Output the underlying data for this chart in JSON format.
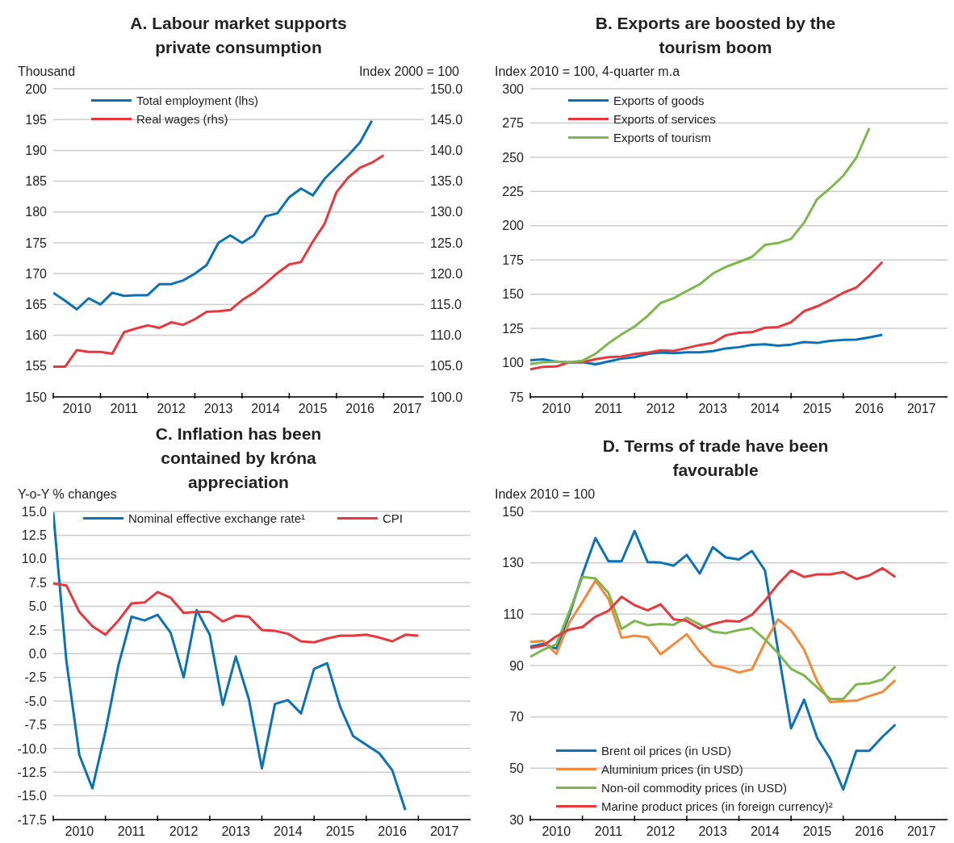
{
  "chart_data": [
    {
      "type": "line",
      "title": "A. Labour market supports private consumption",
      "ylabel": "Thousand",
      "y2label": "Index 2000 = 100",
      "grid": "y",
      "legend": "top left",
      "x": [
        2010,
        2010.25,
        2010.5,
        2010.75,
        2011,
        2011.25,
        2011.5,
        2011.75,
        2012,
        2012.25,
        2012.5,
        2012.75,
        2013,
        2013.25,
        2013.5,
        2013.75,
        2014,
        2014.25,
        2014.5,
        2014.75,
        2015,
        2015.25,
        2015.5,
        2015.75,
        2016,
        2016.25,
        2016.5,
        2016.75,
        2017
      ],
      "xlim": [
        2010,
        2017.85
      ],
      "xticks": [
        {
          "value": 2010,
          "label": null
        },
        {
          "value": 2010.5,
          "label": "2010"
        },
        {
          "value": 2011,
          "label": null
        },
        {
          "value": 2011.5,
          "label": "2011"
        },
        {
          "value": 2012,
          "label": null
        },
        {
          "value": 2012.5,
          "label": "2012"
        },
        {
          "value": 2013,
          "label": null
        },
        {
          "value": 2013.5,
          "label": "2013"
        },
        {
          "value": 2014,
          "label": null
        },
        {
          "value": 2014.5,
          "label": "2014"
        },
        {
          "value": 2015,
          "label": null
        },
        {
          "value": 2015.5,
          "label": "2015"
        },
        {
          "value": 2016,
          "label": null
        },
        {
          "value": 2016.5,
          "label": "2016"
        },
        {
          "value": 2017,
          "label": null
        },
        {
          "value": 2017.5,
          "label": "2017"
        }
      ],
      "ylim": [
        150,
        200
      ],
      "yticks": [
        150,
        155,
        160,
        165,
        170,
        175,
        180,
        185,
        190,
        195,
        200
      ],
      "y2lim": [
        100,
        150
      ],
      "y2ticks": [
        {
          "value": 100,
          "label": "100.0"
        },
        {
          "value": 105,
          "label": "105.0"
        },
        {
          "value": 110,
          "label": "110.0"
        },
        {
          "value": 115,
          "label": "115.0"
        },
        {
          "value": 120,
          "label": "120.0"
        },
        {
          "value": 125,
          "label": "125.0"
        },
        {
          "value": 130,
          "label": "130.0"
        },
        {
          "value": 135,
          "label": "135.0"
        },
        {
          "value": 140,
          "label": "140.0"
        },
        {
          "value": 145,
          "label": "145.0"
        },
        {
          "value": 150,
          "label": "150.0"
        }
      ],
      "series": [
        {
          "name": "Total  employment (lhs)",
          "color": "#0b72b5",
          "values": [
            166.9,
            165.6,
            164.2,
            166.0,
            165.0,
            166.9,
            166.4,
            166.5,
            166.5,
            168.3,
            168.3,
            168.9,
            170.0,
            171.4,
            175.0,
            176.2,
            175.0,
            176.2,
            179.3,
            179.8,
            182.4,
            183.8,
            182.7,
            185.4,
            187.3,
            189.2,
            191.3,
            194.8,
            null
          ]
        },
        {
          "name": "Real wages (rhs)",
          "color": "#e8383d",
          "axis": "y2",
          "values": [
            104.9,
            104.9,
            107.6,
            107.3,
            107.3,
            107.0,
            110.5,
            111.1,
            111.6,
            111.2,
            112.1,
            111.7,
            112.6,
            113.8,
            113.9,
            114.1,
            115.7,
            116.9,
            118.4,
            120.1,
            121.5,
            121.9,
            125.2,
            128.1,
            133.2,
            135.6,
            137.2,
            138.0,
            139.2
          ]
        }
      ]
    },
    {
      "type": "line",
      "title": "B. Exports are boosted by the tourism boom",
      "ylabel": "Index 2010 = 100, 4-quarter m.a",
      "grid": "y",
      "legend": "top left",
      "x": [
        2010,
        2010.25,
        2010.5,
        2010.75,
        2011,
        2011.25,
        2011.5,
        2011.75,
        2012,
        2012.25,
        2012.5,
        2012.75,
        2013,
        2013.25,
        2013.5,
        2013.75,
        2014,
        2014.25,
        2014.5,
        2014.75,
        2015,
        2015.25,
        2015.5,
        2015.75,
        2016,
        2016.25,
        2016.5,
        2016.75
      ],
      "xlim": [
        2010,
        2018
      ],
      "xticks": [
        {
          "value": 2010,
          "label": null
        },
        {
          "value": 2010.5,
          "label": "2010"
        },
        {
          "value": 2011,
          "label": null
        },
        {
          "value": 2011.5,
          "label": "2011"
        },
        {
          "value": 2012,
          "label": null
        },
        {
          "value": 2012.5,
          "label": "2012"
        },
        {
          "value": 2013,
          "label": null
        },
        {
          "value": 2013.5,
          "label": "2013"
        },
        {
          "value": 2014,
          "label": null
        },
        {
          "value": 2014.5,
          "label": "2014"
        },
        {
          "value": 2015,
          "label": null
        },
        {
          "value": 2015.5,
          "label": "2015"
        },
        {
          "value": 2016,
          "label": null
        },
        {
          "value": 2016.5,
          "label": "2016"
        },
        {
          "value": 2017,
          "label": null
        },
        {
          "value": 2017.5,
          "label": "2017"
        }
      ],
      "ylim": [
        75,
        300
      ],
      "yticks": [
        75,
        100,
        125,
        150,
        175,
        200,
        225,
        250,
        275,
        300
      ],
      "series": [
        {
          "name": "Exports of goods",
          "color": "#0b72b5",
          "values": [
            101.8,
            102.4,
            100.7,
            100,
            100.5,
            98.7,
            100.9,
            102.9,
            104,
            106.3,
            107.4,
            107,
            107.5,
            107.5,
            108.4,
            110.4,
            111.3,
            113.0,
            113.5,
            112.4,
            113.2,
            115,
            114.4,
            115.9,
            116.6,
            116.8,
            118.4,
            120.4
          ]
        },
        {
          "name": "Exports of services",
          "color": "#e8383d",
          "values": [
            95.2,
            97,
            97.2,
            100.3,
            100.3,
            102.5,
            104,
            104.5,
            106.3,
            107.2,
            109,
            108.6,
            110.7,
            112.9,
            114.5,
            120,
            121.8,
            122.2,
            125.5,
            126,
            129.5,
            137.6,
            141.1,
            145.7,
            151,
            154.8,
            163.6,
            173.5
          ]
        },
        {
          "name": "Exports of tourism",
          "color": "#7cb84a",
          "values": [
            98.9,
            100.4,
            100.7,
            100.3,
            101.4,
            106.4,
            114.1,
            120.7,
            126.4,
            134.1,
            143.6,
            147.1,
            152.3,
            157.2,
            165.1,
            169.9,
            173.5,
            177.2,
            186,
            187.3,
            190.4,
            202.3,
            219.4,
            227.4,
            236.4,
            249.5,
            271.3,
            null
          ]
        }
      ]
    },
    {
      "type": "line",
      "title": "C. Inflation has been contained by króna appreciation",
      "ylabel": "Y-o-Y % changes",
      "grid": "y",
      "legend": "top",
      "x": [
        2010,
        2010.25,
        2010.5,
        2010.75,
        2011,
        2011.25,
        2011.5,
        2011.75,
        2012,
        2012.25,
        2012.5,
        2012.75,
        2013,
        2013.25,
        2013.5,
        2013.75,
        2014,
        2014.25,
        2014.5,
        2014.75,
        2015,
        2015.25,
        2015.5,
        2015.75,
        2016,
        2016.25,
        2016.5,
        2016.75,
        2017
      ],
      "xlim": [
        2010,
        2018
      ],
      "xticks": [
        {
          "value": 2010,
          "label": null
        },
        {
          "value": 2010.5,
          "label": "2010"
        },
        {
          "value": 2011,
          "label": null
        },
        {
          "value": 2011.5,
          "label": "2011"
        },
        {
          "value": 2012,
          "label": null
        },
        {
          "value": 2012.5,
          "label": "2012"
        },
        {
          "value": 2013,
          "label": null
        },
        {
          "value": 2013.5,
          "label": "2013"
        },
        {
          "value": 2014,
          "label": null
        },
        {
          "value": 2014.5,
          "label": "2014"
        },
        {
          "value": 2015,
          "label": null
        },
        {
          "value": 2015.5,
          "label": "2015"
        },
        {
          "value": 2016,
          "label": null
        },
        {
          "value": 2016.5,
          "label": "2016"
        },
        {
          "value": 2017,
          "label": null
        },
        {
          "value": 2017.5,
          "label": "2017"
        }
      ],
      "ylim": [
        -17.5,
        15
      ],
      "yticks": [
        {
          "value": -17.5,
          "label": "-17.5"
        },
        {
          "value": -15,
          "label": "-15.0"
        },
        {
          "value": -12.5,
          "label": "-12.5"
        },
        {
          "value": -10,
          "label": "-10.0"
        },
        {
          "value": -7.5,
          "label": "-7.5"
        },
        {
          "value": -5,
          "label": "-5.0"
        },
        {
          "value": -2.5,
          "label": "-2.5"
        },
        {
          "value": 0,
          "label": "0.0"
        },
        {
          "value": 2.5,
          "label": "2.5"
        },
        {
          "value": 5,
          "label": "5.0"
        },
        {
          "value": 7.5,
          "label": "7.5"
        },
        {
          "value": 10,
          "label": "10.0"
        },
        {
          "value": 12.5,
          "label": "12.5"
        },
        {
          "value": 15,
          "label": "15.0"
        }
      ],
      "series": [
        {
          "name": "Nominal effective exchange rate¹",
          "color": "#0b72b5",
          "values": [
            14.9,
            -0.7,
            -10.7,
            -14.2,
            -8.2,
            -1.2,
            3.9,
            3.5,
            4.1,
            2.2,
            -2.5,
            4.6,
            2.0,
            -5.4,
            -0.3,
            -4.8,
            -12.1,
            -5.3,
            -4.9,
            -6.3,
            -1.6,
            -1.0,
            -5.6,
            -8.7,
            -9.6,
            -10.5,
            -12.3,
            -16.5,
            null
          ]
        },
        {
          "name": "CPI",
          "color": "#e8383d",
          "values": [
            7.4,
            7.2,
            4.4,
            2.9,
            2.0,
            3.5,
            5.3,
            5.4,
            6.5,
            5.9,
            4.3,
            4.4,
            4.4,
            3.4,
            4.0,
            3.9,
            2.5,
            2.4,
            2.1,
            1.3,
            1.2,
            1.6,
            1.9,
            1.9,
            2.0,
            1.7,
            1.3,
            2.0,
            1.9
          ]
        }
      ]
    },
    {
      "type": "line",
      "title": "D. Terms of trade have been favourable",
      "ylabel": "Index 2010 = 100",
      "grid": "y",
      "legend": "bottom left",
      "x": [
        2010,
        2010.25,
        2010.5,
        2010.75,
        2011,
        2011.25,
        2011.5,
        2011.75,
        2012,
        2012.25,
        2012.5,
        2012.75,
        2013,
        2013.25,
        2013.5,
        2013.75,
        2014,
        2014.25,
        2014.5,
        2014.75,
        2015,
        2015.25,
        2015.5,
        2015.75,
        2016,
        2016.25,
        2016.5,
        2016.75,
        2017
      ],
      "xlim": [
        2010,
        2018
      ],
      "xticks": [
        {
          "value": 2010,
          "label": null
        },
        {
          "value": 2010.5,
          "label": "2010"
        },
        {
          "value": 2011,
          "label": null
        },
        {
          "value": 2011.5,
          "label": "2011"
        },
        {
          "value": 2012,
          "label": null
        },
        {
          "value": 2012.5,
          "label": "2012"
        },
        {
          "value": 2013,
          "label": null
        },
        {
          "value": 2013.5,
          "label": "2013"
        },
        {
          "value": 2014,
          "label": null
        },
        {
          "value": 2014.5,
          "label": "2014"
        },
        {
          "value": 2015,
          "label": null
        },
        {
          "value": 2015.5,
          "label": "2015"
        },
        {
          "value": 2016,
          "label": null
        },
        {
          "value": 2016.5,
          "label": "2016"
        },
        {
          "value": 2017,
          "label": null
        },
        {
          "value": 2017.5,
          "label": "2017"
        }
      ],
      "ylim": [
        30,
        150
      ],
      "yticks": [
        30,
        50,
        70,
        90,
        110,
        130,
        150
      ],
      "series": [
        {
          "name": "Brent oil prices (in USD)",
          "color": "#0b72b5",
          "values": [
            97.4,
            98.4,
            96.6,
            109.8,
            125.5,
            139.6,
            130.6,
            130.6,
            142.4,
            130.3,
            130.1,
            128.9,
            133.1,
            125.8,
            136.1,
            132.1,
            131.3,
            134.6,
            127.0,
            96.0,
            65.5,
            76.7,
            61.8,
            53.7,
            41.7,
            56.8,
            56.8,
            62.2,
            67.0
          ]
        },
        {
          "name": "Aluminium prices (in USD)",
          "color": "#f28a3a",
          "values": [
            99.2,
            99.6,
            94.5,
            106.8,
            114.7,
            123.1,
            115.9,
            100.8,
            101.6,
            101.0,
            94.4,
            98.3,
            102.2,
            95.4,
            90.0,
            89.0,
            87.3,
            88.5,
            99.0,
            108.0,
            103.8,
            96.2,
            83.9,
            75.8,
            76.1,
            76.3,
            78.1,
            79.7,
            84.3
          ]
        },
        {
          "name": "Non-oil commodity prices (in USD)",
          "color": "#7cb84a",
          "values": [
            93.4,
            96.2,
            98.3,
            111.0,
            124.5,
            123.9,
            118.3,
            104.2,
            107.4,
            105.7,
            106.2,
            105.9,
            108.6,
            106.0,
            103.2,
            102.6,
            103.8,
            104.6,
            100.2,
            94.8,
            88.7,
            86.1,
            81.5,
            77.0,
            77.0,
            82.7,
            83.1,
            84.5,
            89.6
          ]
        },
        {
          "name": "Marine product prices (in foreign currency)²",
          "color": "#e8383d",
          "values": [
            96.8,
            97.8,
            101.4,
            104.0,
            105.0,
            109.0,
            111.3,
            116.8,
            113.5,
            111.5,
            113.8,
            108.0,
            107.4,
            104.4,
            106.2,
            107.4,
            107.1,
            109.8,
            115.3,
            121.7,
            127.0,
            124.5,
            125.5,
            125.5,
            126.4,
            123.7,
            125.1,
            127.9,
            124.5
          ]
        }
      ]
    }
  ]
}
